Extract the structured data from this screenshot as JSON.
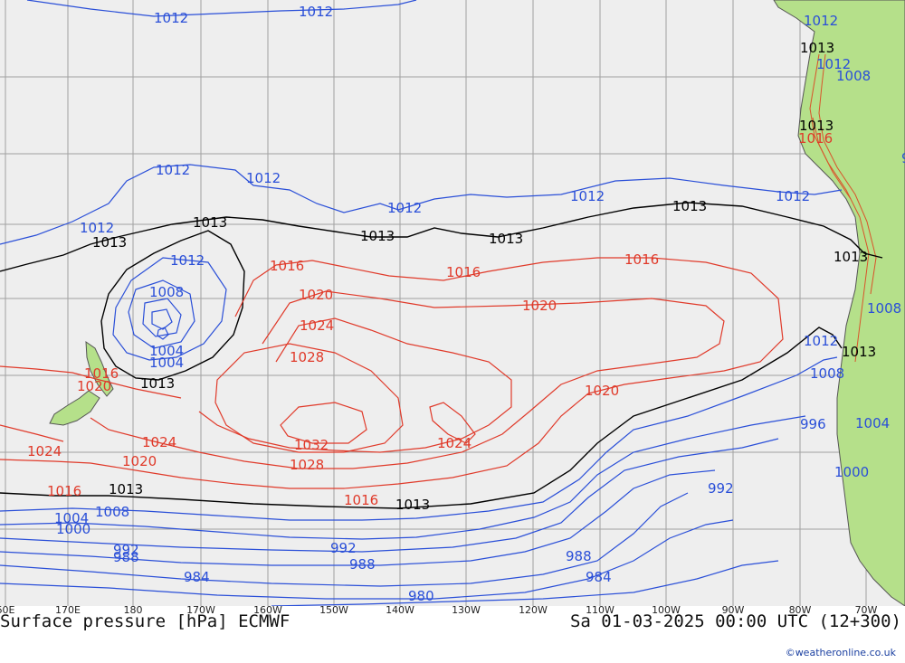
{
  "title": "Surface pressure [hPa] ECMWF",
  "datetime": "Sa 01-03-2025 00:00 UTC (12+300)",
  "credit": "©weatheronline.co.uk",
  "longitude_ticks": [
    "60E",
    "170E",
    "180",
    "170W",
    "160W",
    "150W",
    "140W",
    "130W",
    "120W",
    "110W",
    "100W",
    "90W",
    "80W",
    "70W"
  ],
  "isobar_labels": {
    "blue": [
      "1012",
      "1012",
      "1012",
      "1012",
      "1012",
      "1012",
      "1012",
      "1012",
      "1012",
      "1008",
      "1004",
      "1004",
      "1000",
      "996",
      "992",
      "992",
      "992",
      "988",
      "988",
      "988",
      "984",
      "984",
      "980",
      "1012",
      "1012",
      "1008",
      "1008",
      "1004",
      "1000",
      "1008",
      "1000",
      "1012",
      "1008",
      "1012"
    ],
    "black": [
      "1013",
      "1013",
      "1013",
      "1013",
      "1013",
      "1013",
      "1013",
      "1013",
      "1013",
      "1013",
      "1013",
      "1013"
    ],
    "red": [
      "1016",
      "1016",
      "1016",
      "1016",
      "1016",
      "1016",
      "1016",
      "1020",
      "1020",
      "1020",
      "1020",
      "1020",
      "1024",
      "1024",
      "1024",
      "1024",
      "1028",
      "1028",
      "1032"
    ]
  },
  "colors": {
    "ocean": "#eeeeee",
    "land": "#b5e08a",
    "isobar_low": "#2a4fd8",
    "isobar_high": "#e03a2a",
    "isobar_mean": "#000000",
    "grid": "#a0a0a0"
  }
}
